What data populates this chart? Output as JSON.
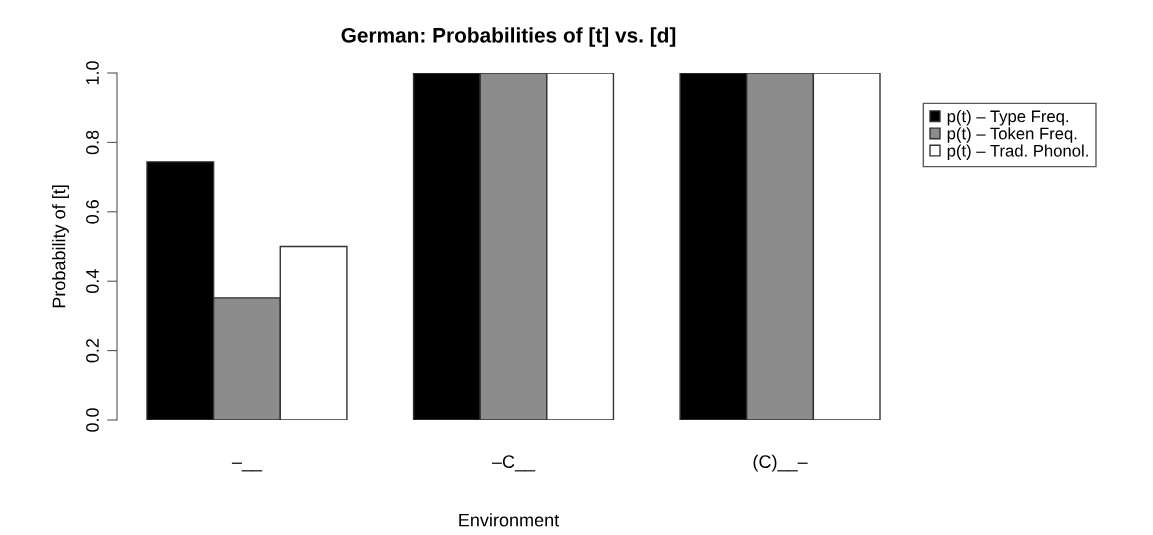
{
  "chart_data": {
    "type": "bar",
    "title": "German: Probabilities of [t] vs. [d]",
    "xlabel": "Environment",
    "ylabel": "Probability of [t]",
    "categories": [
      "–__",
      "–C__",
      "(C)__–"
    ],
    "series": [
      {
        "name": "p(t) – Type Freq.",
        "color": "#000000",
        "values": [
          0.744,
          1.0,
          1.0
        ]
      },
      {
        "name": "p(t) – Token Freq.",
        "color": "#8c8c8c",
        "values": [
          0.352,
          1.0,
          1.0
        ]
      },
      {
        "name": "p(t) – Trad. Phonol.",
        "color": "#ffffff",
        "values": [
          0.5,
          1.0,
          1.0
        ]
      }
    ],
    "ylim": [
      0,
      1
    ],
    "yticks": [
      {
        "value": 0,
        "label": "0.0"
      },
      {
        "value": 0.2,
        "label": "0.2"
      },
      {
        "value": 0.4,
        "label": "0.4"
      },
      {
        "value": 0.6,
        "label": "0.6"
      },
      {
        "value": 0.8,
        "label": "0.8"
      },
      {
        "value": 1,
        "label": "1.0"
      }
    ],
    "grid": false,
    "legend": "top right"
  }
}
